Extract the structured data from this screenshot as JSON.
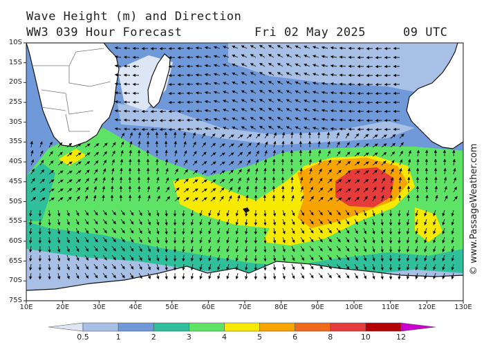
{
  "header": {
    "title": "Wave Height (m) and Direction",
    "model": "WW3 039 Hour Forecast",
    "date": "Fri 02 May 2025",
    "time": "09 UTC"
  },
  "credit": "© www.PassageWeather.com",
  "axes": {
    "lat_labels": [
      "10S",
      "15S",
      "20S",
      "25S",
      "30S",
      "35S",
      "40S",
      "45S",
      "50S",
      "55S",
      "60S",
      "65S",
      "70S",
      "75S"
    ],
    "lon_labels": [
      "10E",
      "20E",
      "30E",
      "40E",
      "50E",
      "60E",
      "70E",
      "80E",
      "90E",
      "100E",
      "110E",
      "120E",
      "130E"
    ]
  },
  "colorbar": {
    "ticks": [
      "0.5",
      "1",
      "2",
      "3",
      "4",
      "5",
      "6",
      "8",
      "10",
      "12"
    ],
    "colors": [
      "#dce6f5",
      "#a9c0e6",
      "#6f99d8",
      "#2fbf9a",
      "#5fe366",
      "#f7ea00",
      "#f7a400",
      "#f06a1c",
      "#e63b3b",
      "#b40000",
      "#cc00cc"
    ]
  },
  "palette": {
    "ocean_base": "#6f99d8",
    "calm": "#a9c0e6",
    "very_calm": "#dce6f5",
    "land": "#ffffff",
    "coast": "#111111"
  }
}
